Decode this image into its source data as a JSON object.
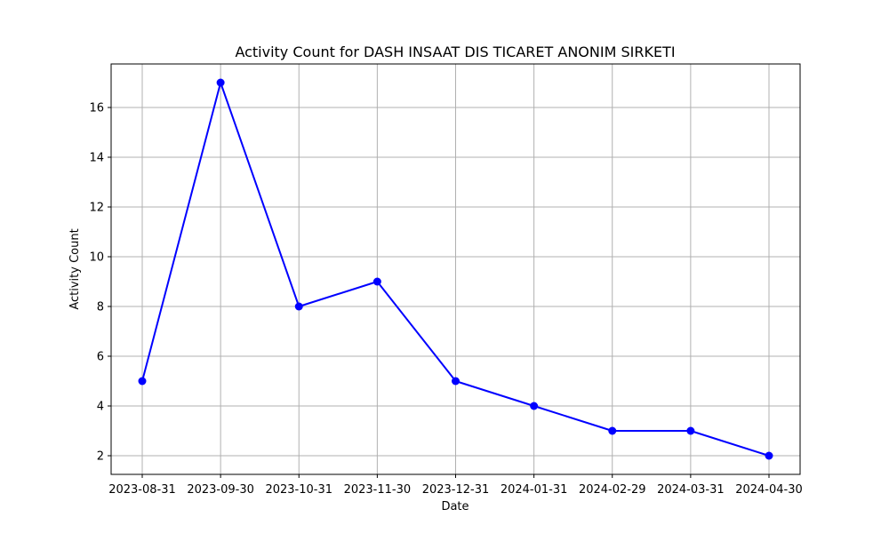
{
  "chart_data": {
    "type": "line",
    "title": "Activity Count for DASH INSAAT DIS TICARET ANONIM SIRKETI",
    "xlabel": "Date",
    "ylabel": "Activity Count",
    "categories": [
      "2023-08-31",
      "2023-09-30",
      "2023-10-31",
      "2023-11-30",
      "2023-12-31",
      "2024-01-31",
      "2024-02-29",
      "2024-03-31",
      "2024-04-30"
    ],
    "series": [
      {
        "values": [
          5,
          17,
          8,
          9,
          5,
          4,
          3,
          3,
          2
        ],
        "color": "#0000ff",
        "marker": "circle"
      }
    ],
    "yticks": [
      2,
      4,
      6,
      8,
      10,
      12,
      14,
      16
    ],
    "ylim": [
      1.25,
      17.75
    ],
    "grid": true,
    "legend": "none"
  }
}
